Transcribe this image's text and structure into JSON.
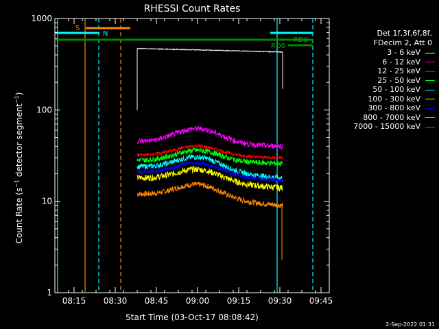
{
  "chart_data": {
    "type": "line",
    "title": "RHESSI Count Rates",
    "ylabel_parts": [
      "Count Rate (s",
      "−1",
      " detector segment",
      "−1",
      ")"
    ],
    "xlabel": "Start Time (03-Oct-17 08:08:42)",
    "yscale": "log",
    "ylim": [
      1,
      1000
    ],
    "yticks": [
      1,
      10,
      100,
      1000
    ],
    "xlim": [
      "08:08",
      "09:48"
    ],
    "xticks": [
      "08:15",
      "08:30",
      "08:45",
      "09:00",
      "09:15",
      "09:30",
      "09:45"
    ],
    "data_start": "08:38",
    "data_end": "09:31",
    "legend_header": [
      "Det 1f,3f,6f,8f,",
      "FDecim 2, Att 0"
    ],
    "series": [
      {
        "name": "3 - 6 keV",
        "color": "#ffffff",
        "start": 470,
        "end": 430,
        "peak": 0,
        "noise": 0.01
      },
      {
        "name": "6 - 12 keV",
        "color": "#ff00ff",
        "start": 45,
        "end": 40,
        "peak": 62,
        "noise": 0.07
      },
      {
        "name": "12 - 25 keV",
        "color": "#ff0000",
        "start": 32,
        "end": 30,
        "peak": 40,
        "noise": 0.04
      },
      {
        "name": "25 - 50 keV",
        "color": "#00ff00",
        "start": 28,
        "end": 26,
        "peak": 36,
        "noise": 0.07
      },
      {
        "name": "50 - 100 keV",
        "color": "#00ffff",
        "start": 24,
        "end": 18,
        "peak": 30,
        "noise": 0.07
      },
      {
        "name": "100 - 300 keV",
        "color": "#ffff00",
        "start": 18,
        "end": 14,
        "peak": 22,
        "noise": 0.08
      },
      {
        "name": "300 - 800 keV",
        "color": "#0000ff",
        "start": 21,
        "end": 17,
        "peak": 26,
        "noise": 0.05
      },
      {
        "name": "800 - 7000 keV",
        "color": "#ff8800",
        "start": 12,
        "end": 9,
        "peak": 15,
        "noise": 0.07
      },
      {
        "name": "7000 - 15000 keV",
        "color": "#aa6600",
        "start": 0,
        "end": 0,
        "peak": 0,
        "noise": 0
      }
    ],
    "annotations": {
      "S": "S",
      "N": "N",
      "RD0": "RD0",
      "RD6": "RD6"
    },
    "vlines": [
      {
        "time": "08:09",
        "color": "#00ffff",
        "style": "solid"
      },
      {
        "time": "08:19",
        "color": "#ff8800",
        "style": "solid"
      },
      {
        "time": "08:24",
        "color": "#00ffff",
        "style": "dashed"
      },
      {
        "time": "08:32",
        "color": "#ff8800",
        "style": "dashed"
      },
      {
        "time": "09:29",
        "color": "#00ffff",
        "style": "solid"
      },
      {
        "time": "09:42",
        "color": "#00ffff",
        "style": "dashed"
      }
    ]
  },
  "footer": {
    "timestamp": "2-Sep-2022 01:31"
  }
}
